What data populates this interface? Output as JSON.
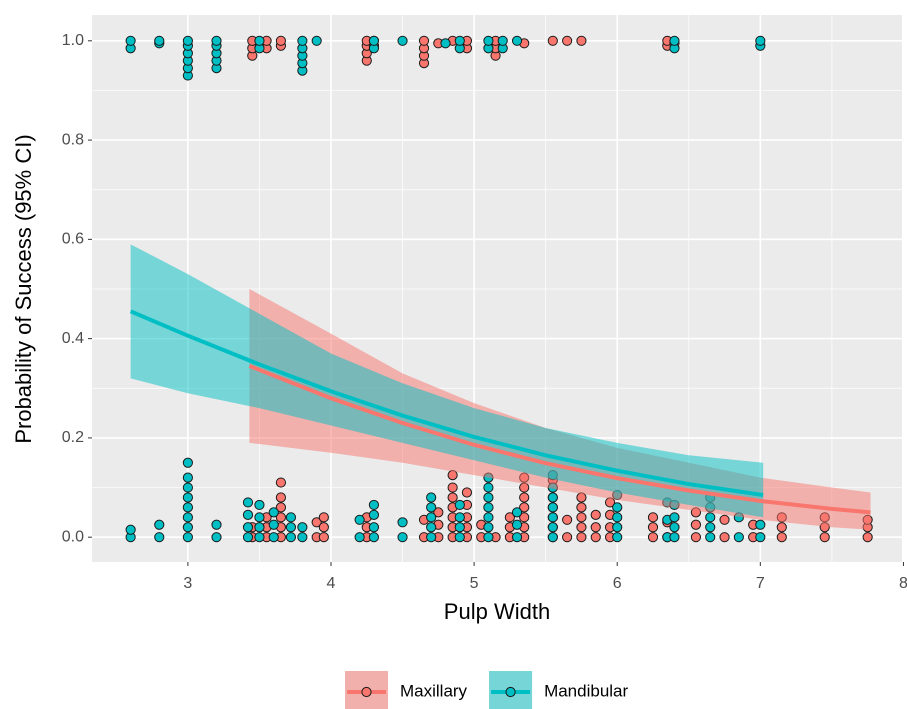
{
  "chart_data": {
    "type": "scatter",
    "x_label": "Pulp Width",
    "y_label": "Probability of Success (95% CI)",
    "xlim": [
      2.33,
      7.99
    ],
    "ylim": [
      -0.05,
      1.052
    ],
    "xticks": [
      3,
      4,
      5,
      6,
      7,
      8
    ],
    "yticks": [
      {
        "value": 0,
        "label": "0.0"
      },
      {
        "value": 0.2,
        "label": "0.2"
      },
      {
        "value": 0.4,
        "label": "0.4"
      },
      {
        "value": 0.6,
        "label": "0.6"
      },
      {
        "value": 0.8,
        "label": "0.8"
      },
      {
        "value": 1,
        "label": "1.0"
      }
    ],
    "grid": true,
    "legend": "bottom",
    "series": [
      {
        "name": "Maxillary",
        "color": "#F8766D",
        "points": {
          "x": [
            3.45,
            3.45,
            3.55,
            3.55,
            3.55,
            3.65,
            3.65,
            3.65,
            3.65,
            3.65,
            3.65,
            3.9,
            3.9,
            3.95,
            3.95,
            3.95,
            4.25,
            4.25,
            4.25,
            4.65,
            4.65,
            4.75,
            4.75,
            4.75,
            4.85,
            4.85,
            4.85,
            4.85,
            4.85,
            4.85,
            4.85,
            4.95,
            4.95,
            4.95,
            4.95,
            4.95,
            5.05,
            5.05,
            5.15,
            5.25,
            5.25,
            5.25,
            5.35,
            5.35,
            5.35,
            5.35,
            5.35,
            5.35,
            5.35,
            5.55,
            5.55,
            5.55,
            5.55,
            5.55,
            5.55,
            5.55,
            5.65,
            5.65,
            5.75,
            5.75,
            5.75,
            5.75,
            5.75,
            5.85,
            5.85,
            5.85,
            5.95,
            5.95,
            5.95,
            5.95,
            6.25,
            6.25,
            6.25,
            6.35,
            6.35,
            6.55,
            6.55,
            6.55,
            6.75,
            6.75,
            6.95,
            6.95,
            7.15,
            7.15,
            7.15,
            7.45,
            7.45,
            7.45,
            7.75,
            7.75,
            7.75,
            3.45,
            3.45,
            3.45,
            3.55,
            3.55,
            3.65,
            3.65,
            4.25,
            4.25,
            4.25,
            4.25,
            4.3,
            4.3,
            4.65,
            4.65,
            4.65,
            4.65,
            4.75,
            4.85,
            4.95,
            4.95,
            5.15,
            5.15,
            5.15,
            5.35,
            5.55,
            5.65,
            5.75,
            6.35,
            6.35,
            6.4
          ],
          "y": [
            0,
            0.02,
            0,
            0.02,
            0.04,
            0,
            0.02,
            0.04,
            0.06,
            0.08,
            0.11,
            0,
            0.03,
            0,
            0.02,
            0.04,
            0,
            0.02,
            0.04,
            0,
            0.035,
            0,
            0.025,
            0.05,
            0,
            0.02,
            0.04,
            0.06,
            0.08,
            0.1,
            0.125,
            0,
            0.02,
            0.04,
            0.065,
            0.09,
            0,
            0.025,
            0,
            0,
            0.02,
            0.04,
            0,
            0.02,
            0.04,
            0.06,
            0.08,
            0.1,
            0.12,
            0,
            0.02,
            0.04,
            0.06,
            0.08,
            0.1,
            0.115,
            0,
            0.035,
            0,
            0.02,
            0.04,
            0.06,
            0.08,
            0,
            0.02,
            0.045,
            0,
            0.02,
            0.045,
            0.07,
            0,
            0.02,
            0.04,
            0,
            0.03,
            0,
            0.025,
            0.05,
            0,
            0.035,
            0,
            0.025,
            0,
            0.02,
            0.04,
            0,
            0.02,
            0.04,
            0,
            0.02,
            0.035,
            0.97,
            0.985,
            1,
            0.985,
            1,
            0.99,
            1,
            0.96,
            0.975,
            0.99,
            1,
            0.99,
            1,
            0.955,
            0.97,
            0.985,
            1,
            0.995,
            1,
            0.985,
            1,
            0.97,
            0.985,
            1,
            0.995,
            1,
            1,
            1,
            0.99,
            1,
            0.995
          ]
        },
        "fit": {
          "x": [
            3.43,
            4,
            4.5,
            5,
            5.5,
            6,
            6.5,
            7,
            7.5,
            7.77
          ],
          "y": [
            0.345,
            0.28,
            0.23,
            0.186,
            0.149,
            0.119,
            0.094,
            0.073,
            0.057,
            0.05
          ],
          "lower": [
            0.19,
            0.17,
            0.15,
            0.125,
            0.1,
            0.075,
            0.055,
            0.035,
            0.02,
            0.015
          ],
          "upper": [
            0.5,
            0.41,
            0.33,
            0.27,
            0.22,
            0.18,
            0.15,
            0.12,
            0.1,
            0.09
          ]
        }
      },
      {
        "name": "Mandibular",
        "color": "#00BFC4",
        "points": {
          "x": [
            2.6,
            2.6,
            2.8,
            2.8,
            3,
            3,
            3,
            3,
            3,
            3,
            3,
            3,
            3.2,
            3.2,
            3.42,
            3.42,
            3.42,
            3.42,
            3.5,
            3.5,
            3.5,
            3.5,
            3.6,
            3.6,
            3.6,
            3.72,
            3.72,
            3.72,
            3.8,
            3.8,
            4.2,
            4.2,
            4.3,
            4.3,
            4.3,
            4.3,
            4.5,
            4.5,
            4.7,
            4.7,
            4.7,
            4.7,
            4.7,
            4.9,
            4.9,
            4.9,
            4.9,
            5.1,
            5.1,
            5.1,
            5.1,
            5.1,
            5.1,
            5.1,
            5.3,
            5.3,
            5.3,
            5.55,
            5.55,
            5.55,
            5.55,
            5.55,
            5.55,
            5.55,
            6,
            6,
            6,
            6,
            6,
            6.35,
            6.35,
            6.35,
            6.4,
            6.4,
            6.4,
            6.4,
            6.65,
            6.65,
            6.65,
            6.65,
            6.65,
            6.85,
            6.85,
            7,
            7,
            2.6,
            2.6,
            2.8,
            2.8,
            3,
            3,
            3,
            3,
            3,
            3,
            3.2,
            3.2,
            3.2,
            3.2,
            3.2,
            3.5,
            3.5,
            3.8,
            3.8,
            3.8,
            3.8,
            3.8,
            3.9,
            4.3,
            4.3,
            4.5,
            4.8,
            4.9,
            4.9,
            5.1,
            5.1,
            5.2,
            5.2,
            5.3,
            6.4,
            6.4,
            7,
            7
          ],
          "y": [
            0,
            0.015,
            0,
            0.025,
            0,
            0.02,
            0.04,
            0.06,
            0.08,
            0.1,
            0.12,
            0.15,
            0,
            0.025,
            0,
            0.02,
            0.045,
            0.07,
            0,
            0.02,
            0.04,
            0.065,
            0,
            0.025,
            0.05,
            0,
            0.02,
            0.04,
            0,
            0.02,
            0,
            0.035,
            0,
            0.02,
            0.045,
            0.065,
            0,
            0.03,
            0,
            0.02,
            0.04,
            0.06,
            0.08,
            0,
            0.02,
            0.04,
            0.065,
            0,
            0.02,
            0.04,
            0.06,
            0.08,
            0.1,
            0.12,
            0,
            0.025,
            0.05,
            0,
            0.02,
            0.04,
            0.06,
            0.08,
            0.1,
            0.125,
            0,
            0.02,
            0.04,
            0.06,
            0.085,
            0,
            0.035,
            0.07,
            0,
            0.02,
            0.04,
            0.065,
            0,
            0.02,
            0.04,
            0.06,
            0.08,
            0,
            0.04,
            0,
            0.025,
            0.985,
            1,
            0.995,
            1,
            0.93,
            0.945,
            0.96,
            0.975,
            0.99,
            1,
            0.945,
            0.96,
            0.975,
            0.99,
            1,
            0.985,
            1,
            0.94,
            0.955,
            0.97,
            0.985,
            1,
            1,
            0.985,
            1,
            1,
            0.995,
            0.985,
            1,
            0.985,
            1,
            0.985,
            1,
            1,
            0.985,
            1,
            0.99,
            1
          ]
        },
        "fit": {
          "x": [
            2.6,
            3,
            3.5,
            4,
            4.5,
            5,
            5.5,
            6,
            6.5,
            7.02
          ],
          "y": [
            0.455,
            0.406,
            0.348,
            0.294,
            0.245,
            0.202,
            0.165,
            0.134,
            0.107,
            0.085
          ],
          "lower": [
            0.32,
            0.29,
            0.26,
            0.225,
            0.19,
            0.155,
            0.12,
            0.09,
            0.065,
            0.04
          ],
          "upper": [
            0.59,
            0.53,
            0.45,
            0.37,
            0.31,
            0.26,
            0.22,
            0.19,
            0.165,
            0.15
          ]
        }
      }
    ]
  }
}
